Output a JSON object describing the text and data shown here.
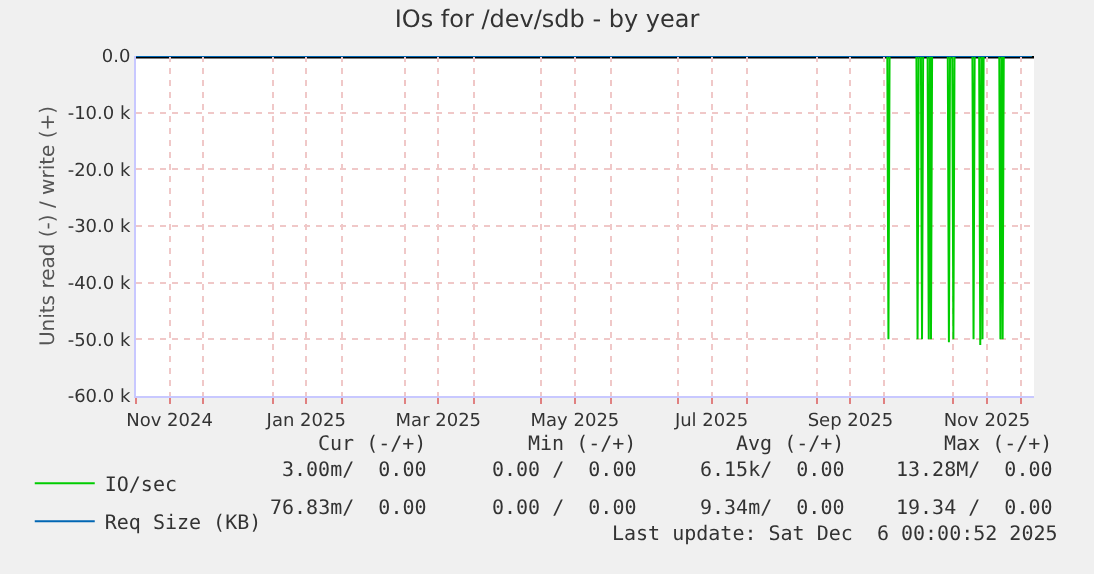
{
  "chart_data": {
    "type": "line",
    "title": "IOs for /dev/sdb - by year",
    "ylabel": "Units read (-) / write (+)",
    "xlim": [
      "2024-11-01",
      "2025-12-07"
    ],
    "xticks": [
      {
        "value": "2024-11-01",
        "label": null
      },
      {
        "value": "2024-11-16",
        "label": "Nov 2024"
      },
      {
        "value": "2024-12-01",
        "label": null
      },
      {
        "value": "2025-01-01",
        "label": null
      },
      {
        "value": "2025-01-16",
        "label": "Jan 2025"
      },
      {
        "value": "2025-02-01",
        "label": null
      },
      {
        "value": "2025-03-01",
        "label": null
      },
      {
        "value": "2025-03-16",
        "label": "Mar 2025"
      },
      {
        "value": "2025-04-01",
        "label": null
      },
      {
        "value": "2025-05-01",
        "label": null
      },
      {
        "value": "2025-05-16",
        "label": "May 2025"
      },
      {
        "value": "2025-06-01",
        "label": null
      },
      {
        "value": "2025-07-01",
        "label": null
      },
      {
        "value": "2025-07-16",
        "label": "Jul 2025"
      },
      {
        "value": "2025-08-01",
        "label": null
      },
      {
        "value": "2025-09-01",
        "label": null
      },
      {
        "value": "2025-09-16",
        "label": "Sep 2025"
      },
      {
        "value": "2025-10-01",
        "label": null
      },
      {
        "value": "2025-11-01",
        "label": null
      },
      {
        "value": "2025-11-16",
        "label": "Nov 2025"
      },
      {
        "value": "2025-12-01",
        "label": null
      }
    ],
    "ylim": [
      -60000,
      0
    ],
    "yticks": [
      {
        "value": -60000,
        "label": "-60.0 k"
      },
      {
        "value": -50000,
        "label": "-50.0 k"
      },
      {
        "value": -40000,
        "label": "-40.0 k"
      },
      {
        "value": -30000,
        "label": "-30.0 k"
      },
      {
        "value": -20000,
        "label": "-20.0 k"
      },
      {
        "value": -10000,
        "label": "-10.0 k"
      },
      {
        "value": 0,
        "label": "0.0"
      }
    ],
    "ref_lines": [
      {
        "axis": "y",
        "value": 0,
        "label": null,
        "color": "#000000"
      }
    ],
    "grid": true,
    "legend": "bottom",
    "marker": "none",
    "line_style": "solid",
    "series": [
      {
        "name": "IO/sec",
        "color": "#00cc00",
        "x": [
          "2024-11-01",
          "2025-10-02T12:00",
          "2025-10-03",
          "2025-10-03T12:00",
          "2025-10-15T12:00",
          "2025-10-16",
          "2025-10-16T12:00",
          "2025-10-17T12:00",
          "2025-10-18",
          "2025-10-18T12:00",
          "2025-10-20T12:00",
          "2025-10-21",
          "2025-10-21T12:00",
          "2025-10-21T18:00",
          "2025-10-22",
          "2025-10-22T12:00",
          "2025-10-29T12:00",
          "2025-10-30",
          "2025-10-30T12:00",
          "2025-10-31T12:00",
          "2025-11-01",
          "2025-11-01T12:00",
          "2025-11-09T12:00",
          "2025-11-10",
          "2025-11-10T12:00",
          "2025-11-12T12:00",
          "2025-11-13",
          "2025-11-13T12:00",
          "2025-11-13T18:00",
          "2025-11-14",
          "2025-11-14T12:00",
          "2025-11-21T12:00",
          "2025-11-22",
          "2025-11-22T12:00",
          "2025-11-22T18:00",
          "2025-11-23",
          "2025-11-23T12:00",
          "2025-12-06"
        ],
        "values": [
          0,
          0,
          -50000,
          0,
          0,
          -50000,
          0,
          0,
          -50000,
          0,
          0,
          -50000,
          0,
          0,
          -50000,
          0,
          0,
          -50500,
          0,
          0,
          -50000,
          0,
          0,
          -50000,
          0,
          0,
          -51000,
          0,
          0,
          -50000,
          0,
          0,
          -50000,
          0,
          0,
          -50000,
          0,
          0
        ]
      },
      {
        "name": "Req Size (KB)",
        "color": "#0066b3",
        "x": [
          "2024-11-01",
          "2025-12-06"
        ],
        "values": [
          0,
          0
        ]
      }
    ],
    "annotations": [
      "Cur (-/+)",
      "Min (-/+)",
      "Avg (-/+)",
      "Max (-/+)",
      "3.00m/  0.00",
      "0.00 /  0.00",
      "6.15k/  0.00",
      "13.28M/  0.00",
      "76.83m/  0.00",
      "0.00 /  0.00",
      "9.34m/  0.00",
      "19.34 /  0.00",
      "Last update: Sat Dec  6 00:00:52 2025"
    ]
  }
}
